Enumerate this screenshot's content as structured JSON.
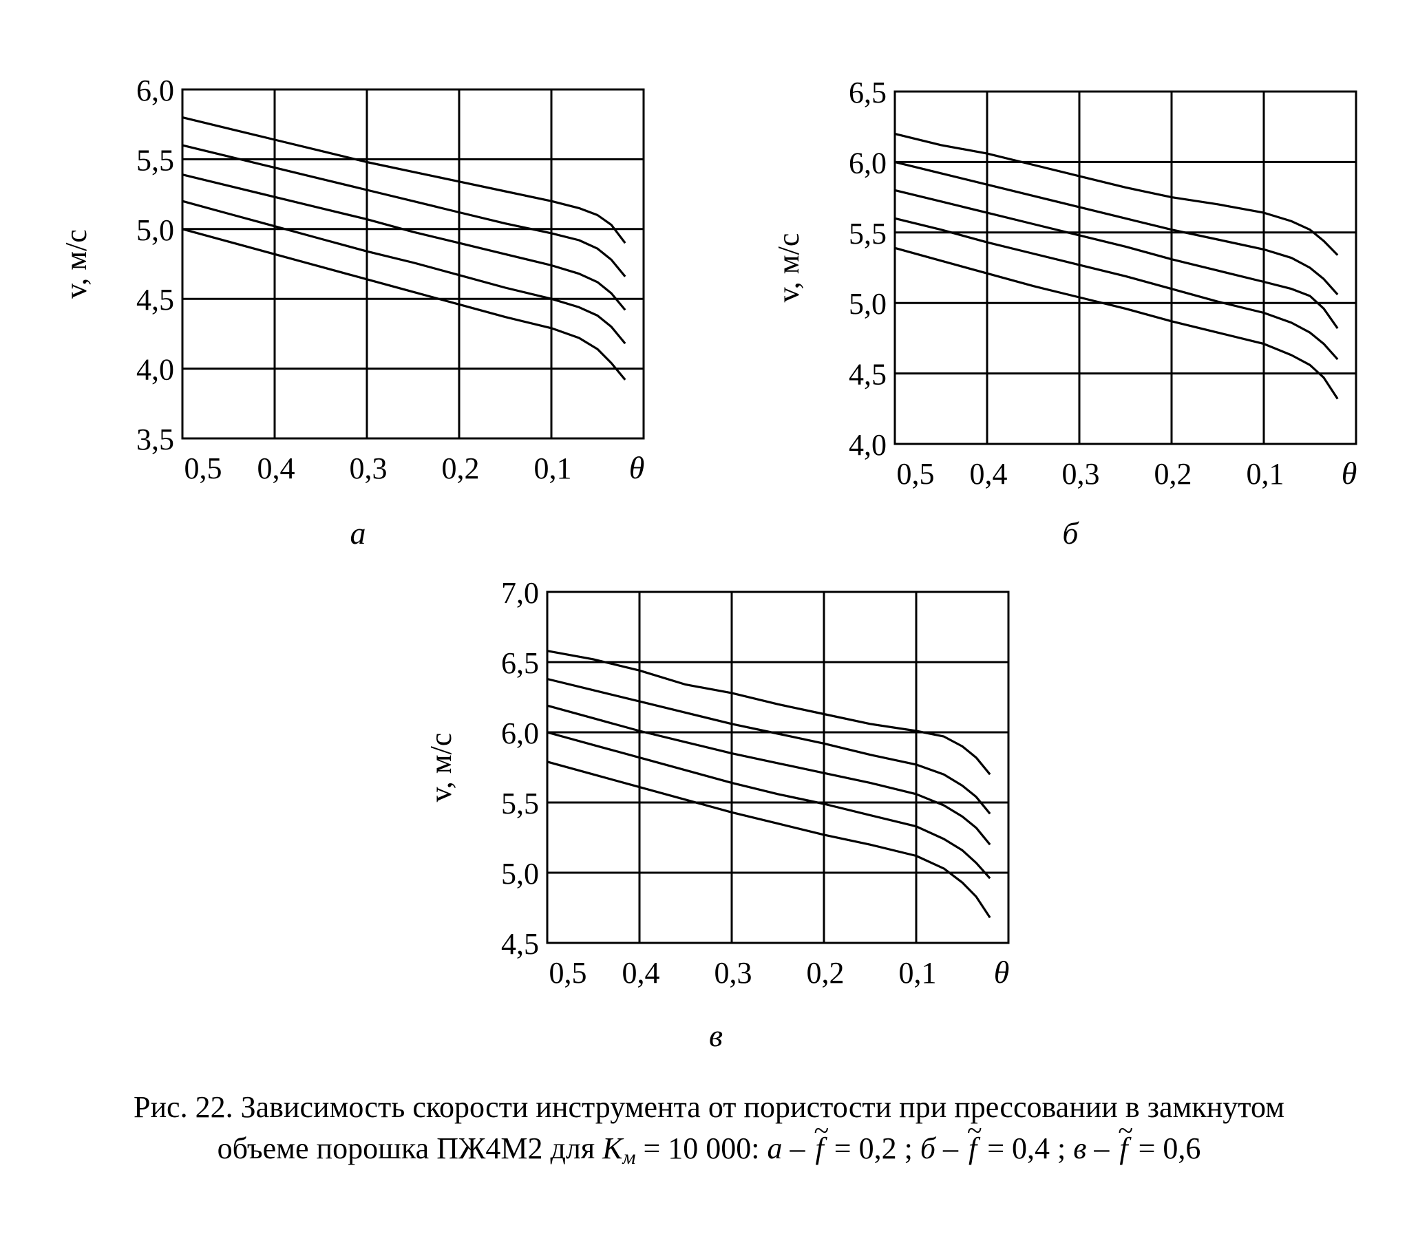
{
  "chart_data": [
    {
      "type": "line",
      "panel_label": "а",
      "ylabel": "v, м/с",
      "xlabel": "θ",
      "x_ticks": [
        "0,5",
        "0,4",
        "0,3",
        "0,2",
        "0,1"
      ],
      "y_ticks": [
        "3,5",
        "4,0",
        "4,5",
        "5,0",
        "5,5",
        "6,0"
      ],
      "xlim": [
        0.5,
        0.0
      ],
      "ylim": [
        3.5,
        6.0
      ],
      "grid": true,
      "series": [
        {
          "points": [
            [
              0.5,
              5.8
            ],
            [
              0.45,
              5.72
            ],
            [
              0.4,
              5.64
            ],
            [
              0.35,
              5.56
            ],
            [
              0.3,
              5.48
            ],
            [
              0.25,
              5.41
            ],
            [
              0.2,
              5.34
            ],
            [
              0.15,
              5.27
            ],
            [
              0.1,
              5.2
            ],
            [
              0.07,
              5.15
            ],
            [
              0.05,
              5.1
            ],
            [
              0.035,
              5.03
            ],
            [
              0.02,
              4.9
            ]
          ]
        },
        {
          "points": [
            [
              0.5,
              5.6
            ],
            [
              0.45,
              5.52
            ],
            [
              0.4,
              5.44
            ],
            [
              0.35,
              5.36
            ],
            [
              0.3,
              5.28
            ],
            [
              0.25,
              5.2
            ],
            [
              0.2,
              5.12
            ],
            [
              0.15,
              5.04
            ],
            [
              0.1,
              4.97
            ],
            [
              0.07,
              4.92
            ],
            [
              0.05,
              4.86
            ],
            [
              0.035,
              4.78
            ],
            [
              0.02,
              4.66
            ]
          ]
        },
        {
          "points": [
            [
              0.5,
              5.39
            ],
            [
              0.45,
              5.31
            ],
            [
              0.4,
              5.23
            ],
            [
              0.35,
              5.15
            ],
            [
              0.3,
              5.07
            ],
            [
              0.25,
              4.98
            ],
            [
              0.2,
              4.9
            ],
            [
              0.15,
              4.82
            ],
            [
              0.1,
              4.74
            ],
            [
              0.07,
              4.68
            ],
            [
              0.05,
              4.62
            ],
            [
              0.035,
              4.54
            ],
            [
              0.02,
              4.42
            ]
          ]
        },
        {
          "points": [
            [
              0.5,
              5.2
            ],
            [
              0.45,
              5.11
            ],
            [
              0.4,
              5.02
            ],
            [
              0.35,
              4.93
            ],
            [
              0.3,
              4.84
            ],
            [
              0.25,
              4.76
            ],
            [
              0.2,
              4.67
            ],
            [
              0.15,
              4.58
            ],
            [
              0.1,
              4.5
            ],
            [
              0.07,
              4.44
            ],
            [
              0.05,
              4.38
            ],
            [
              0.035,
              4.3
            ],
            [
              0.02,
              4.18
            ]
          ]
        },
        {
          "points": [
            [
              0.5,
              5.0
            ],
            [
              0.45,
              4.91
            ],
            [
              0.4,
              4.82
            ],
            [
              0.35,
              4.73
            ],
            [
              0.3,
              4.64
            ],
            [
              0.25,
              4.55
            ],
            [
              0.2,
              4.46
            ],
            [
              0.15,
              4.37
            ],
            [
              0.1,
              4.29
            ],
            [
              0.07,
              4.22
            ],
            [
              0.05,
              4.14
            ],
            [
              0.035,
              4.04
            ],
            [
              0.02,
              3.92
            ]
          ]
        }
      ]
    },
    {
      "type": "line",
      "panel_label": "б",
      "ylabel": "v, м/с",
      "xlabel": "θ",
      "x_ticks": [
        "0,5",
        "0,4",
        "0,3",
        "0,2",
        "0,1"
      ],
      "y_ticks": [
        "4,0",
        "4,5",
        "5,0",
        "5,5",
        "6,0",
        "6,5"
      ],
      "xlim": [
        0.5,
        0.0
      ],
      "ylim": [
        4.0,
        6.5
      ],
      "grid": true,
      "series": [
        {
          "points": [
            [
              0.5,
              6.2
            ],
            [
              0.45,
              6.12
            ],
            [
              0.4,
              6.06
            ],
            [
              0.35,
              5.98
            ],
            [
              0.3,
              5.9
            ],
            [
              0.25,
              5.82
            ],
            [
              0.2,
              5.75
            ],
            [
              0.15,
              5.7
            ],
            [
              0.1,
              5.64
            ],
            [
              0.07,
              5.58
            ],
            [
              0.05,
              5.52
            ],
            [
              0.035,
              5.44
            ],
            [
              0.02,
              5.34
            ]
          ]
        },
        {
          "points": [
            [
              0.5,
              6.0
            ],
            [
              0.45,
              5.92
            ],
            [
              0.4,
              5.84
            ],
            [
              0.35,
              5.76
            ],
            [
              0.3,
              5.68
            ],
            [
              0.25,
              5.6
            ],
            [
              0.2,
              5.52
            ],
            [
              0.15,
              5.45
            ],
            [
              0.1,
              5.38
            ],
            [
              0.07,
              5.32
            ],
            [
              0.05,
              5.25
            ],
            [
              0.035,
              5.17
            ],
            [
              0.02,
              5.06
            ]
          ]
        },
        {
          "points": [
            [
              0.5,
              5.8
            ],
            [
              0.45,
              5.72
            ],
            [
              0.4,
              5.64
            ],
            [
              0.35,
              5.56
            ],
            [
              0.3,
              5.48
            ],
            [
              0.25,
              5.4
            ],
            [
              0.2,
              5.31
            ],
            [
              0.15,
              5.23
            ],
            [
              0.1,
              5.15
            ],
            [
              0.07,
              5.1
            ],
            [
              0.05,
              5.05
            ],
            [
              0.035,
              4.96
            ],
            [
              0.02,
              4.82
            ]
          ]
        },
        {
          "points": [
            [
              0.5,
              5.6
            ],
            [
              0.45,
              5.52
            ],
            [
              0.4,
              5.43
            ],
            [
              0.35,
              5.35
            ],
            [
              0.3,
              5.27
            ],
            [
              0.25,
              5.19
            ],
            [
              0.2,
              5.1
            ],
            [
              0.15,
              5.01
            ],
            [
              0.1,
              4.93
            ],
            [
              0.07,
              4.86
            ],
            [
              0.05,
              4.79
            ],
            [
              0.035,
              4.71
            ],
            [
              0.02,
              4.6
            ]
          ]
        },
        {
          "points": [
            [
              0.5,
              5.39
            ],
            [
              0.45,
              5.3
            ],
            [
              0.4,
              5.21
            ],
            [
              0.35,
              5.12
            ],
            [
              0.3,
              5.04
            ],
            [
              0.25,
              4.96
            ],
            [
              0.2,
              4.87
            ],
            [
              0.15,
              4.79
            ],
            [
              0.1,
              4.71
            ],
            [
              0.07,
              4.63
            ],
            [
              0.05,
              4.56
            ],
            [
              0.035,
              4.47
            ],
            [
              0.02,
              4.32
            ]
          ]
        }
      ]
    },
    {
      "type": "line",
      "panel_label": "в",
      "ylabel": "v, м/с",
      "xlabel": "θ",
      "x_ticks": [
        "0,5",
        "0,4",
        "0,3",
        "0,2",
        "0,1"
      ],
      "y_ticks": [
        "4,5",
        "5,0",
        "5,5",
        "6,0",
        "6,5",
        "7,0"
      ],
      "xlim": [
        0.5,
        0.0
      ],
      "ylim": [
        4.5,
        7.0
      ],
      "grid": true,
      "series": [
        {
          "points": [
            [
              0.5,
              6.58
            ],
            [
              0.45,
              6.52
            ],
            [
              0.4,
              6.44
            ],
            [
              0.35,
              6.34
            ],
            [
              0.3,
              6.28
            ],
            [
              0.25,
              6.2
            ],
            [
              0.2,
              6.13
            ],
            [
              0.15,
              6.06
            ],
            [
              0.1,
              6.01
            ],
            [
              0.07,
              5.97
            ],
            [
              0.05,
              5.9
            ],
            [
              0.035,
              5.82
            ],
            [
              0.02,
              5.7
            ]
          ]
        },
        {
          "points": [
            [
              0.5,
              6.38
            ],
            [
              0.45,
              6.3
            ],
            [
              0.4,
              6.22
            ],
            [
              0.35,
              6.14
            ],
            [
              0.3,
              6.06
            ],
            [
              0.25,
              5.99
            ],
            [
              0.2,
              5.92
            ],
            [
              0.15,
              5.84
            ],
            [
              0.1,
              5.77
            ],
            [
              0.07,
              5.7
            ],
            [
              0.05,
              5.62
            ],
            [
              0.035,
              5.54
            ],
            [
              0.02,
              5.42
            ]
          ]
        },
        {
          "points": [
            [
              0.5,
              6.19
            ],
            [
              0.45,
              6.1
            ],
            [
              0.4,
              6.01
            ],
            [
              0.35,
              5.93
            ],
            [
              0.3,
              5.85
            ],
            [
              0.25,
              5.78
            ],
            [
              0.2,
              5.71
            ],
            [
              0.15,
              5.64
            ],
            [
              0.1,
              5.56
            ],
            [
              0.07,
              5.48
            ],
            [
              0.05,
              5.4
            ],
            [
              0.035,
              5.32
            ],
            [
              0.02,
              5.2
            ]
          ]
        },
        {
          "points": [
            [
              0.5,
              6.0
            ],
            [
              0.45,
              5.91
            ],
            [
              0.4,
              5.82
            ],
            [
              0.35,
              5.73
            ],
            [
              0.3,
              5.64
            ],
            [
              0.25,
              5.56
            ],
            [
              0.2,
              5.49
            ],
            [
              0.15,
              5.41
            ],
            [
              0.1,
              5.33
            ],
            [
              0.07,
              5.24
            ],
            [
              0.05,
              5.16
            ],
            [
              0.035,
              5.07
            ],
            [
              0.02,
              4.96
            ]
          ]
        },
        {
          "points": [
            [
              0.5,
              5.79
            ],
            [
              0.45,
              5.7
            ],
            [
              0.4,
              5.61
            ],
            [
              0.35,
              5.52
            ],
            [
              0.3,
              5.43
            ],
            [
              0.25,
              5.35
            ],
            [
              0.2,
              5.27
            ],
            [
              0.15,
              5.2
            ],
            [
              0.1,
              5.12
            ],
            [
              0.07,
              5.03
            ],
            [
              0.05,
              4.93
            ],
            [
              0.035,
              4.83
            ],
            [
              0.02,
              4.68
            ]
          ]
        }
      ]
    }
  ],
  "caption": {
    "line1": "Рис. 22. Зависимость скорости инструмента от пористости при прессовании в замкнутом",
    "line2_prefix": "объеме порошка ПЖ4М2 для ",
    "k_letter": "К",
    "k_sub": "м",
    "k_value": " = 10 000: ",
    "parts": [
      {
        "label": "а –",
        "f": "f",
        "value": "= 0,2 ;"
      },
      {
        "label": "б –",
        "f": "f",
        "value": "= 0,4 ;"
      },
      {
        "label": "в –",
        "f": "f",
        "value": "= 0,6"
      }
    ]
  }
}
